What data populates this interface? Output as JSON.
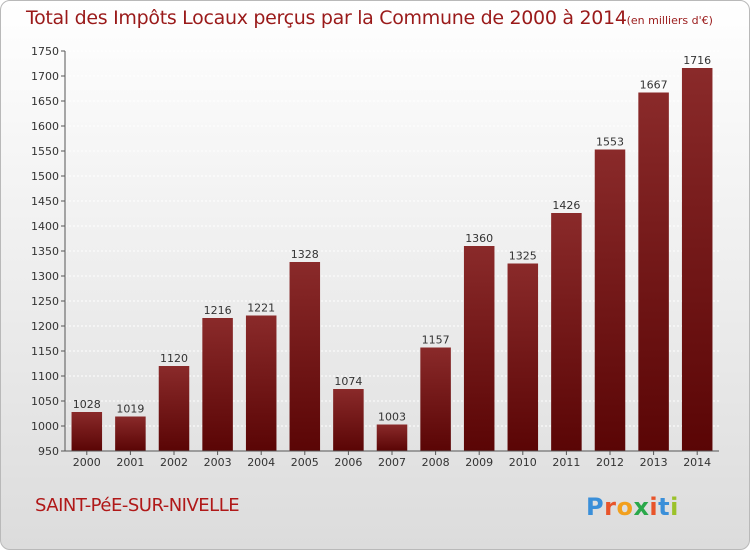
{
  "title": "Total des Impôts Locaux perçus par la Commune de 2000 à 2014",
  "subtitle": "(en milliers d'€)",
  "commune": "SAINT-PéE-SUR-NIVELLE",
  "logo": {
    "text": "Proxiti",
    "colors": [
      "#3a8fd9",
      "#e8542a",
      "#f2a01e",
      "#2aa84a",
      "#e8542a",
      "#3a8fd9",
      "#9bc22a"
    ]
  },
  "colors": {
    "title": "#9a1a1a",
    "bar_top": "#8a2a2a",
    "bar_bottom": "#5a0505",
    "grid": "#ffffff"
  },
  "chart_data": {
    "type": "bar",
    "categories": [
      "2000",
      "2001",
      "2002",
      "2003",
      "2004",
      "2005",
      "2006",
      "2007",
      "2008",
      "2009",
      "2010",
      "2011",
      "2012",
      "2013",
      "2014"
    ],
    "values": [
      1028,
      1019,
      1120,
      1216,
      1221,
      1328,
      1074,
      1003,
      1157,
      1360,
      1325,
      1426,
      1553,
      1667,
      1716
    ],
    "ylim": [
      950,
      1750
    ],
    "yticks": [
      950,
      1000,
      1050,
      1100,
      1150,
      1200,
      1250,
      1300,
      1350,
      1400,
      1450,
      1500,
      1550,
      1600,
      1650,
      1700,
      1750
    ],
    "grid": true,
    "data_labels": true
  }
}
